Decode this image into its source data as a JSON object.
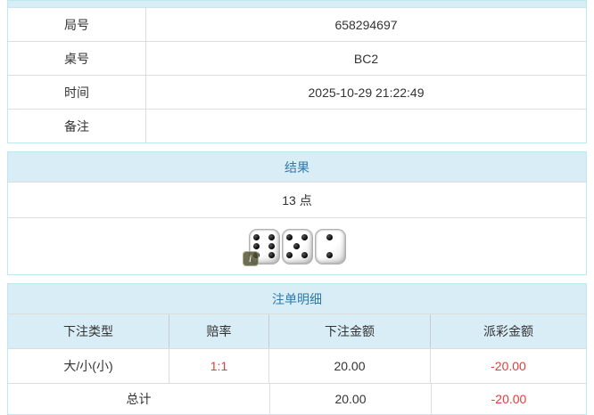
{
  "info_table": {
    "rows": [
      {
        "label": "局号",
        "value": "658294697"
      },
      {
        "label": "桌号",
        "value": "BC2"
      },
      {
        "label": "时间",
        "value": "2025-10-29 21:22:49"
      },
      {
        "label": "备注",
        "value": ""
      }
    ]
  },
  "result_panel": {
    "title": "结果",
    "points": "13 点",
    "dice": [
      6,
      5,
      2
    ],
    "info_badge": "i"
  },
  "bets_panel": {
    "title": "注单明细",
    "columns": [
      "下注类型",
      "赔率",
      "下注金额",
      "派彩金额"
    ],
    "rows": [
      {
        "bet_type": "大/小(小)",
        "odds": "1:1",
        "bet_amount": "20.00",
        "payout": "-20.00"
      }
    ],
    "total": {
      "label": "总计",
      "bet_amount": "20.00",
      "payout": "-20.00"
    }
  },
  "colors": {
    "panel_border": "#bce8f1",
    "header_bg": "#d9edf7",
    "header_text": "#2f7aad",
    "cell_border": "#dddddd",
    "body_text": "#333333",
    "negative_text": "#e43b3d"
  }
}
